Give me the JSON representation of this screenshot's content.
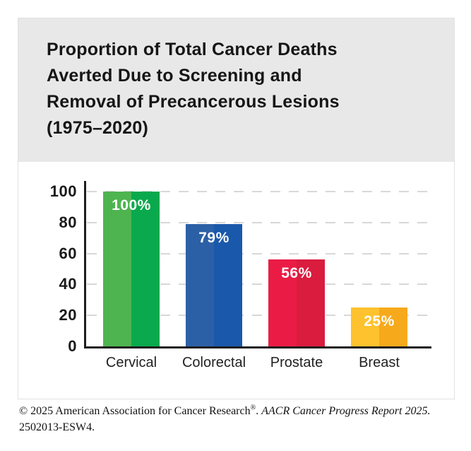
{
  "card": {
    "title_lines": [
      "Proportion of Total Cancer Deaths",
      "Averted Due to Screening and",
      "Removal of Precancerous Lesions",
      "(1975–2020)"
    ]
  },
  "chart_data": {
    "type": "bar",
    "title": "Proportion of Total Cancer Deaths Averted Due to Screening and Removal of Precancerous Lesions (1975–2020)",
    "categories": [
      "Cervical",
      "Colorectal",
      "Prostate",
      "Breast"
    ],
    "values": [
      100,
      79,
      56,
      25
    ],
    "bar_labels": [
      "100%",
      "79%",
      "56%",
      "25%"
    ],
    "bar_colors_left": [
      "#4eb450",
      "#2c60a6",
      "#ea1c45",
      "#fdc22d"
    ],
    "bar_colors_right": [
      "#0aa94d",
      "#1a58ab",
      "#da1c3f",
      "#f7a91c"
    ],
    "value_label_color": "#ffffff",
    "xlabel": "",
    "ylabel": "",
    "ylim": [
      0,
      100
    ],
    "yticks": [
      0,
      20,
      40,
      60,
      80,
      100
    ],
    "grid": "dashed horizontal gridlines at each y tick",
    "legend_position": "none",
    "header_background": "#e8e8e8",
    "axis_color": "#1d1d1d",
    "gridline_color": "#d8d8d8"
  },
  "footer": {
    "line1_text": "© 2025 American Association for Cancer Research",
    "line1_reg_mark": "®",
    "line1_sep": ". ",
    "line1_italic": "AACR Cancer Progress Report 2025.",
    "line2": "2502013-ESW4."
  }
}
